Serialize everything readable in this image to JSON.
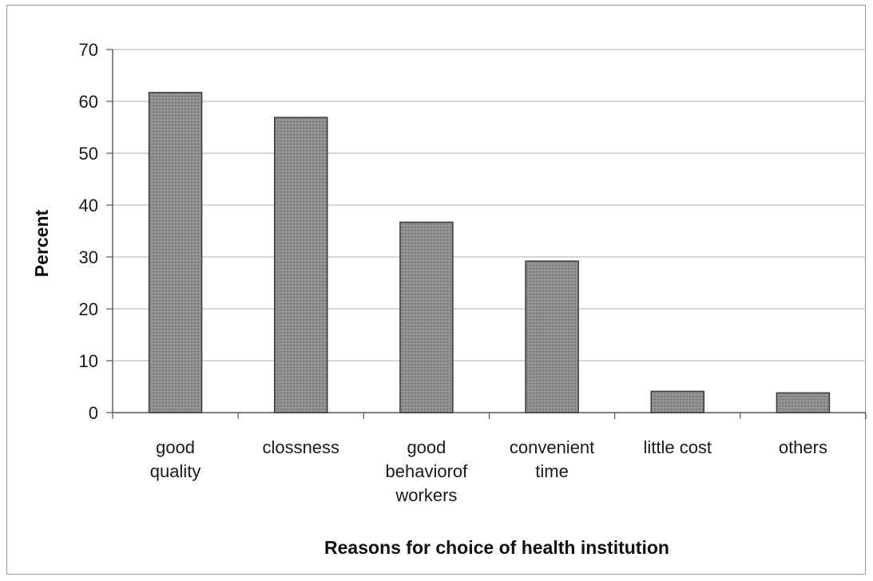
{
  "chart_data": {
    "type": "bar",
    "title": "",
    "xlabel": "Reasons for choice of health institution",
    "ylabel": "Percent",
    "categories": [
      [
        "good",
        "quality"
      ],
      [
        "clossness"
      ],
      [
        "good",
        "behaviorof",
        "workers"
      ],
      [
        "convenient",
        "time"
      ],
      [
        "little cost"
      ],
      [
        "others"
      ]
    ],
    "values": [
      61.7,
      56.9,
      36.7,
      29.2,
      4.1,
      3.8
    ],
    "ylim": [
      0,
      70
    ],
    "yticks": [
      0,
      10,
      20,
      30,
      40,
      50,
      60,
      70
    ],
    "grid": true,
    "legend": "none",
    "colors": {
      "bar_fill": "#8a8a8a",
      "bar_stroke": "#3a3a3a",
      "grid": "#bdbdbd",
      "axis": "#555555"
    }
  }
}
